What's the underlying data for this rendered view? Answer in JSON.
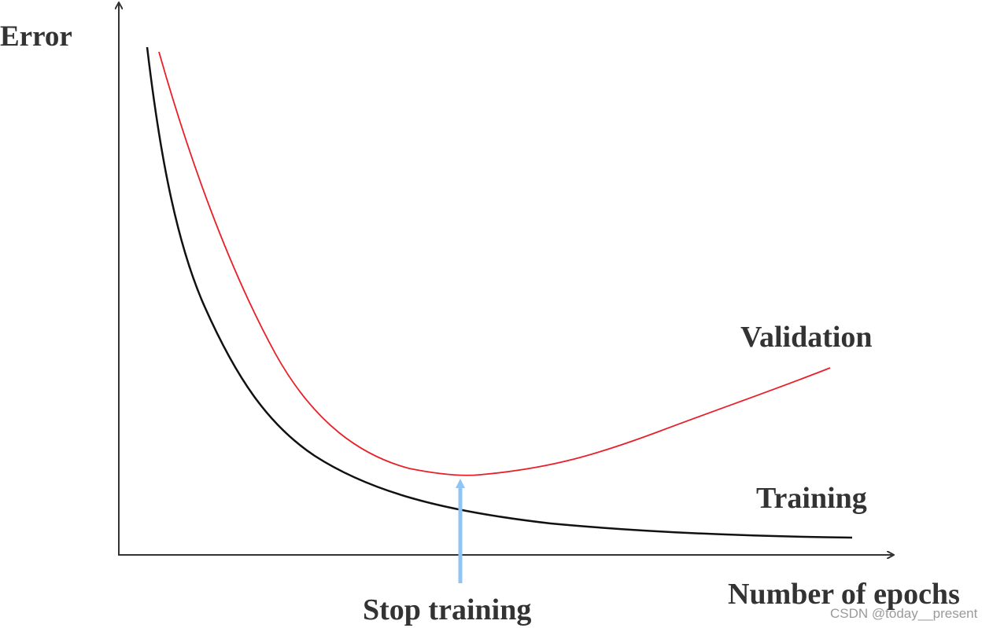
{
  "labels": {
    "y_axis": "Error",
    "x_axis": "Number of epochs",
    "validation": "Validation",
    "training": "Training",
    "stop": "Stop training"
  },
  "watermark": "CSDN @today__present"
}
